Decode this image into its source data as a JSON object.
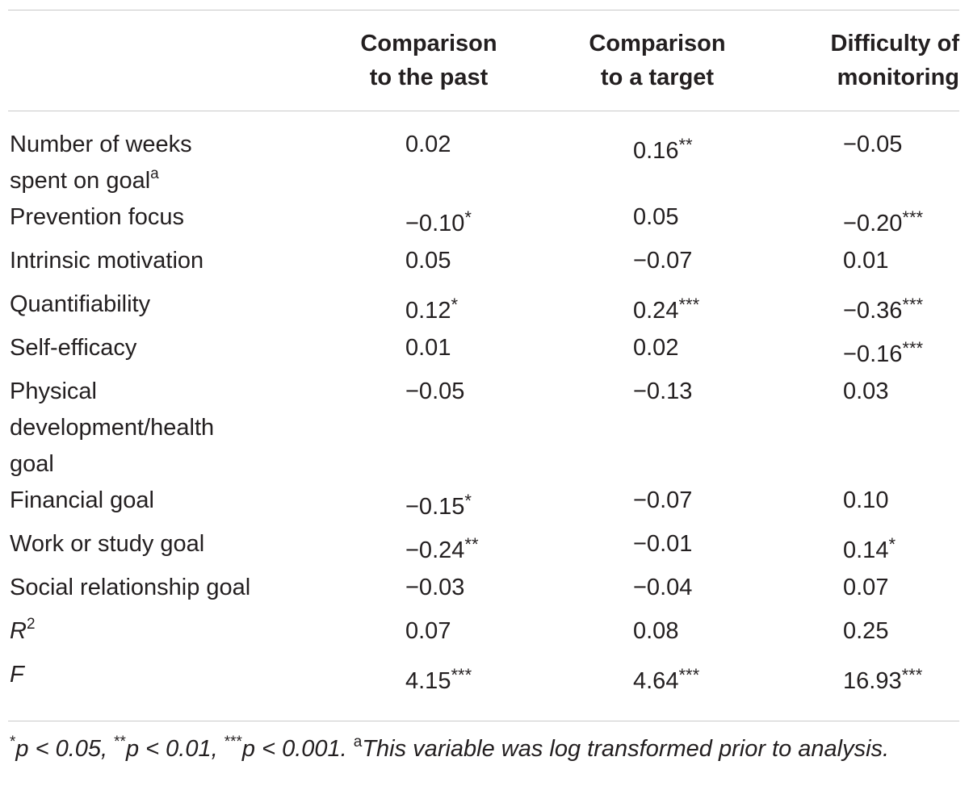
{
  "table": {
    "headers": {
      "label": "",
      "comparison_past": [
        "Comparison",
        "to the past"
      ],
      "comparison_target": [
        "Comparison",
        "to a target"
      ],
      "difficulty_monitoring": [
        "Difficulty of",
        "monitoring"
      ]
    },
    "rows": [
      {
        "label": [
          "Number of weeks",
          "spent on goal"
        ],
        "label_sup": "a",
        "past": "0.02",
        "past_sig": "",
        "target": "0.16",
        "target_sig": "**",
        "difficulty": "−0.05",
        "difficulty_sig": ""
      },
      {
        "label": [
          "Prevention focus"
        ],
        "label_sup": "",
        "past": "−0.10",
        "past_sig": "*",
        "target": "0.05",
        "target_sig": "",
        "difficulty": "−0.20",
        "difficulty_sig": "***"
      },
      {
        "label": [
          "Intrinsic motivation"
        ],
        "label_sup": "",
        "past": "0.05",
        "past_sig": "",
        "target": "−0.07",
        "target_sig": "",
        "difficulty": "0.01",
        "difficulty_sig": ""
      },
      {
        "label": [
          "Quantifiability"
        ],
        "label_sup": "",
        "past": "0.12",
        "past_sig": "*",
        "target": "0.24",
        "target_sig": "***",
        "difficulty": "−0.36",
        "difficulty_sig": "***"
      },
      {
        "label": [
          "Self-efficacy"
        ],
        "label_sup": "",
        "past": "0.01",
        "past_sig": "",
        "target": "0.02",
        "target_sig": "",
        "difficulty": "−0.16",
        "difficulty_sig": "***"
      },
      {
        "label": [
          "Physical",
          "development/health",
          "goal"
        ],
        "label_sup": "",
        "past": "−0.05",
        "past_sig": "",
        "target": "−0.13",
        "target_sig": "",
        "difficulty": "0.03",
        "difficulty_sig": ""
      },
      {
        "label": [
          "Financial goal"
        ],
        "label_sup": "",
        "past": "−0.15",
        "past_sig": "*",
        "target": "−0.07",
        "target_sig": "",
        "difficulty": "0.10",
        "difficulty_sig": ""
      },
      {
        "label": [
          "Work or study goal"
        ],
        "label_sup": "",
        "past": "−0.24",
        "past_sig": "**",
        "target": "−0.01",
        "target_sig": "",
        "difficulty": "0.14",
        "difficulty_sig": "*"
      },
      {
        "label": [
          "Social relationship goal"
        ],
        "label_sup": "",
        "past": "−0.03",
        "past_sig": "",
        "target": "−0.04",
        "target_sig": "",
        "difficulty": "0.07",
        "difficulty_sig": ""
      }
    ],
    "summary": {
      "r2": {
        "label": "R",
        "label_sup": "2",
        "past": "0.07",
        "target": "0.08",
        "difficulty": "0.25"
      },
      "f": {
        "label": "F",
        "past": "4.15",
        "past_sig": "***",
        "target": "4.64",
        "target_sig": "***",
        "difficulty": "16.93",
        "difficulty_sig": "***"
      }
    }
  },
  "footnote": {
    "star1": "*",
    "p1": "p < 0.05, ",
    "star2": "**",
    "p2": "p < 0.01, ",
    "star3": "***",
    "p3": "p < 0.001. ",
    "mark": "a",
    "text": "This variable was log transformed prior to analysis."
  },
  "colors": {
    "text": "#231f20",
    "rule": "#c9c9c9",
    "background": "#ffffff"
  }
}
